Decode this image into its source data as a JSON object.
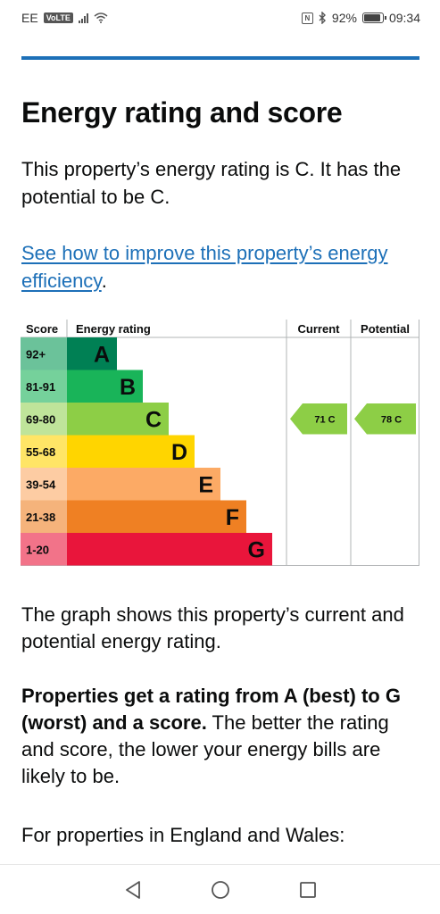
{
  "status_bar": {
    "carrier": "EE",
    "volte": "VoLTE",
    "battery": "92%",
    "battery_level": 0.92,
    "time": "09:34",
    "icons": [
      "signal-icon",
      "wifi-icon",
      "nfc-icon",
      "bluetooth-icon",
      "battery-icon"
    ]
  },
  "page": {
    "title": "Energy rating and score",
    "intro": "This property’s energy rating is C. It has the potential to be C.",
    "improve_link": "See how to improve this property’s energy efficiency",
    "improve_link_suffix": ".",
    "graph_text": "The graph shows this property’s current and potential energy rating.",
    "ratings_bold": "Properties get a rating from A (best) to G (worst) and a score.",
    "ratings_rest": " The better the rating and score, the lower your energy bills are likely to be.",
    "england_text": "For properties in England and Wales:"
  },
  "chart_data": {
    "type": "table",
    "headers": {
      "score": "Score",
      "rating": "Energy rating",
      "current": "Current",
      "potential": "Potential"
    },
    "bands": [
      {
        "score": "92+",
        "letter": "A",
        "color": "#008054",
        "score_bg": "#6bc29a"
      },
      {
        "score": "81-91",
        "letter": "B",
        "color": "#19b459",
        "score_bg": "#75d19b"
      },
      {
        "score": "69-80",
        "letter": "C",
        "color": "#8dce46",
        "score_bg": "#bfe49a"
      },
      {
        "score": "55-68",
        "letter": "D",
        "color": "#ffd500",
        "score_bg": "#ffe566"
      },
      {
        "score": "39-54",
        "letter": "E",
        "color": "#fcaa65",
        "score_bg": "#fdcca3"
      },
      {
        "score": "21-38",
        "letter": "F",
        "color": "#ef8023",
        "score_bg": "#f5b37b"
      },
      {
        "score": "1-20",
        "letter": "G",
        "color": "#e9153b",
        "score_bg": "#f27389"
      }
    ],
    "current": {
      "value": 71,
      "band": "C",
      "label": "71 C"
    },
    "potential": {
      "value": 78,
      "band": "C",
      "label": "78 C"
    }
  },
  "nav_bar": {
    "buttons": [
      "back-icon",
      "home-icon",
      "recents-icon"
    ]
  }
}
